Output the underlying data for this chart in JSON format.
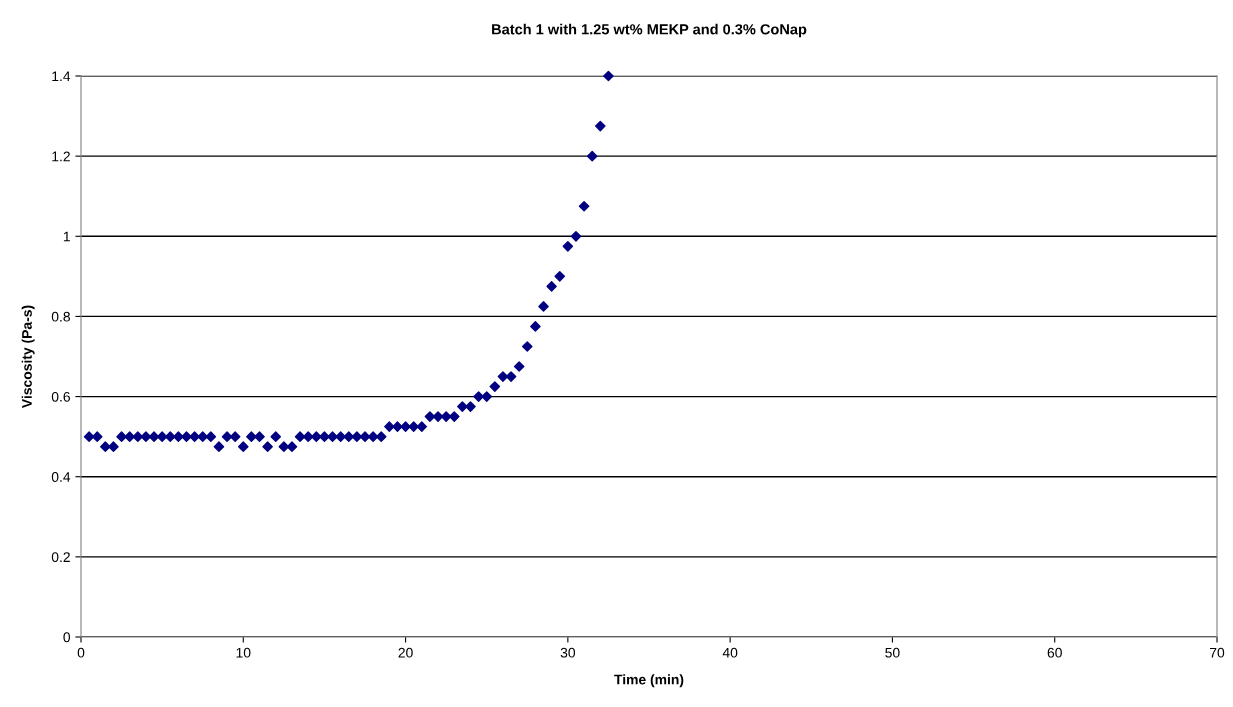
{
  "chart_data": {
    "type": "scatter",
    "title": "Batch 1 with 1.25 wt% MEKP and 0.3% CoNap",
    "xlabel": "Time (min)",
    "ylabel": "Viscosity (Pa-s)",
    "x": [
      0.5,
      1,
      1.5,
      2,
      2.5,
      3,
      3.5,
      4,
      4.5,
      5,
      5.5,
      6,
      6.5,
      7,
      7.5,
      8,
      8.5,
      9,
      9.5,
      10,
      10.5,
      11,
      11.5,
      12,
      12.5,
      13,
      13.5,
      14,
      14.5,
      15,
      15.5,
      16,
      16.5,
      17,
      17.5,
      18,
      18.5,
      19,
      19.5,
      20,
      20.5,
      21,
      21.5,
      22,
      22.5,
      23,
      23.5,
      24,
      24.5,
      25,
      25.5,
      26,
      26.5,
      27,
      27.5,
      28,
      28.5,
      29,
      29.5,
      30,
      30.5,
      31,
      31.5,
      32,
      32.5
    ],
    "series": [
      {
        "color": "#000080",
        "values": [
          0.5,
          0.5,
          0.475,
          0.475,
          0.5,
          0.5,
          0.5,
          0.5,
          0.5,
          0.5,
          0.5,
          0.5,
          0.5,
          0.5,
          0.5,
          0.5,
          0.475,
          0.5,
          0.5,
          0.475,
          0.5,
          0.5,
          0.475,
          0.5,
          0.475,
          0.475,
          0.5,
          0.5,
          0.5,
          0.5,
          0.5,
          0.5,
          0.5,
          0.5,
          0.5,
          0.5,
          0.5,
          0.525,
          0.525,
          0.525,
          0.525,
          0.525,
          0.55,
          0.55,
          0.55,
          0.55,
          0.575,
          0.575,
          0.6,
          0.6,
          0.625,
          0.65,
          0.65,
          0.675,
          0.725,
          0.775,
          0.825,
          0.875,
          0.9,
          0.975,
          1.0,
          1.075,
          1.2,
          1.275,
          1.4
        ]
      }
    ],
    "xlim": [
      0,
      70
    ],
    "xticks": [
      0,
      10,
      20,
      30,
      40,
      50,
      60,
      70
    ],
    "ylim": [
      0,
      1.4
    ],
    "yticks": [
      0,
      0.2,
      0.4,
      0.6,
      0.8,
      1,
      1.2,
      1.4
    ],
    "grid": "y",
    "marker": "diamond"
  }
}
